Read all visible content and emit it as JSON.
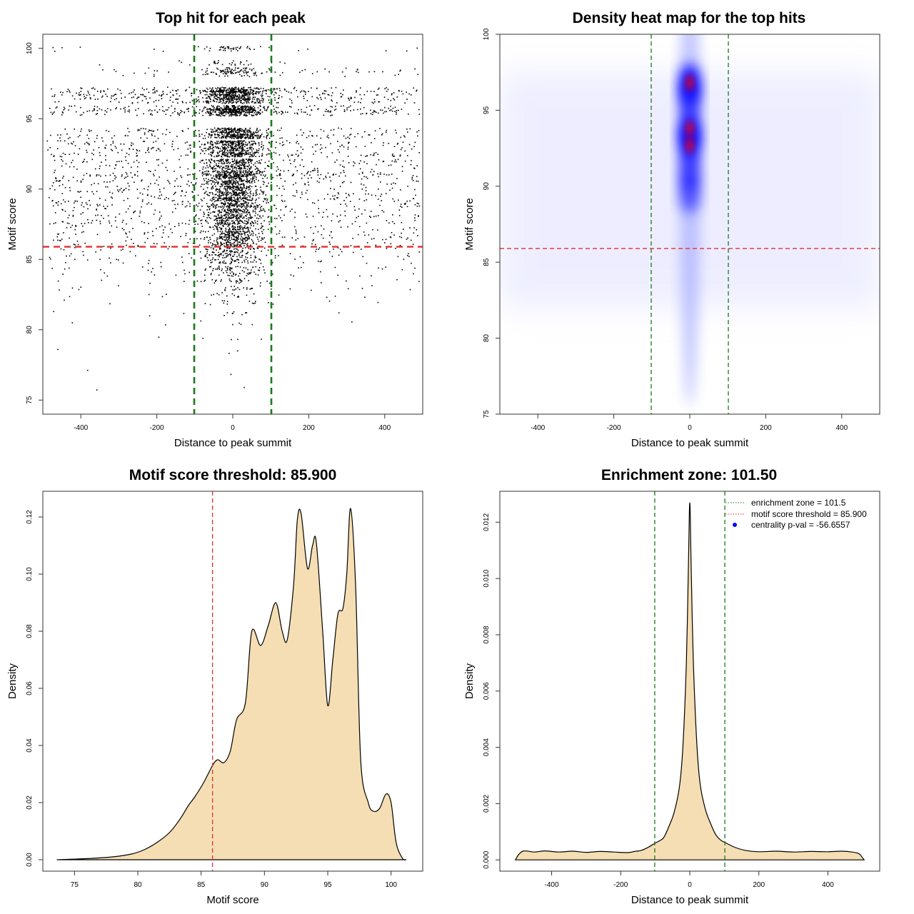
{
  "chart_data": [
    {
      "id": "scatter",
      "type": "scatter",
      "title": "Top hit for each peak",
      "xlabel": "Distance to peak summit",
      "ylabel": "Motif score",
      "xlim": [
        -500,
        500
      ],
      "ylim": [
        74,
        101
      ],
      "xticks": [
        -400,
        -200,
        0,
        200,
        400
      ],
      "yticks": [
        75,
        80,
        85,
        90,
        95,
        100
      ],
      "hlines": [
        {
          "y": 85.9,
          "color": "#e03030",
          "style": "dashed"
        }
      ],
      "vlines": [
        {
          "x": -101.5,
          "color": "#1a7a1a",
          "style": "dashed"
        },
        {
          "x": 101.5,
          "color": "#1a7a1a",
          "style": "dashed"
        }
      ],
      "score_levels": [
        {
          "score": 100.0,
          "weight": 0.35
        },
        {
          "score": 99.0,
          "weight": 0.2
        },
        {
          "score": 98.5,
          "weight": 0.5
        },
        {
          "score": 98.2,
          "weight": 0.4
        },
        {
          "score": 97.1,
          "weight": 1.3
        },
        {
          "score": 96.9,
          "weight": 1.6
        },
        {
          "score": 96.6,
          "weight": 1.5
        },
        {
          "score": 96.3,
          "weight": 1.3
        },
        {
          "score": 95.8,
          "weight": 1.4
        },
        {
          "score": 95.6,
          "weight": 1.6
        },
        {
          "score": 95.4,
          "weight": 1.2
        },
        {
          "score": 94.2,
          "weight": 1.4
        },
        {
          "score": 93.8,
          "weight": 1.7
        },
        {
          "score": 93.3,
          "weight": 1.5
        },
        {
          "score": 92.9,
          "weight": 1.3
        },
        {
          "score": 92.5,
          "weight": 1.4
        },
        {
          "score": 92.0,
          "weight": 1.2
        },
        {
          "score": 91.6,
          "weight": 1.0
        },
        {
          "score": 91.2,
          "weight": 1.3
        },
        {
          "score": 90.9,
          "weight": 1.4
        },
        {
          "score": 90.5,
          "weight": 1.2
        },
        {
          "score": 90.1,
          "weight": 1.1
        },
        {
          "score": 89.7,
          "weight": 1.2
        },
        {
          "score": 89.3,
          "weight": 1.3
        },
        {
          "score": 88.9,
          "weight": 1.2
        },
        {
          "score": 88.5,
          "weight": 1.0
        },
        {
          "score": 88.1,
          "weight": 1.1
        },
        {
          "score": 87.7,
          "weight": 1.0
        },
        {
          "score": 87.3,
          "weight": 0.8
        },
        {
          "score": 86.9,
          "weight": 0.9
        },
        {
          "score": 86.5,
          "weight": 0.9
        },
        {
          "score": 86.1,
          "weight": 0.8
        },
        {
          "score": 85.7,
          "weight": 0.6
        },
        {
          "score": 85.3,
          "weight": 0.5
        },
        {
          "score": 84.9,
          "weight": 0.45
        },
        {
          "score": 84.4,
          "weight": 0.4
        },
        {
          "score": 84.0,
          "weight": 0.3
        },
        {
          "score": 83.5,
          "weight": 0.25
        },
        {
          "score": 83.0,
          "weight": 0.2
        },
        {
          "score": 82.5,
          "weight": 0.15
        },
        {
          "score": 82.0,
          "weight": 0.12
        },
        {
          "score": 81.2,
          "weight": 0.08
        },
        {
          "score": 80.5,
          "weight": 0.05
        },
        {
          "score": 79.5,
          "weight": 0.03
        },
        {
          "score": 78.5,
          "weight": 0.02
        },
        {
          "score": 77.0,
          "weight": 0.01
        },
        {
          "score": 75.8,
          "weight": 0.01
        }
      ]
    },
    {
      "id": "heatmap",
      "type": "heatmap",
      "title": "Density heat map for the top hits",
      "xlabel": "Distance to peak summit",
      "ylabel": "Motif score",
      "xlim": [
        -500,
        500
      ],
      "ylim": [
        75,
        100
      ],
      "xticks": [
        -400,
        -200,
        0,
        200,
        400
      ],
      "yticks": [
        75,
        80,
        85,
        90,
        95,
        100
      ],
      "hlines": [
        {
          "y": 85.9,
          "color": "#e03030",
          "style": "dashed"
        }
      ],
      "vlines": [
        {
          "x": -101.5,
          "color": "#1a7a1a",
          "style": "dashed"
        },
        {
          "x": 101.5,
          "color": "#1a7a1a",
          "style": "dashed"
        }
      ],
      "hotspots": [
        {
          "x": 0,
          "y": 96.8,
          "intensity": 1.0
        },
        {
          "x": 0,
          "y": 95.7,
          "intensity": 0.75
        },
        {
          "x": 0,
          "y": 93.8,
          "intensity": 0.9
        },
        {
          "x": 0,
          "y": 92.8,
          "intensity": 0.95
        },
        {
          "x": 0,
          "y": 91.0,
          "intensity": 0.7
        },
        {
          "x": 0,
          "y": 89.5,
          "intensity": 0.6
        }
      ],
      "colors": [
        "#ffffff",
        "#0000ff",
        "#ff0000"
      ]
    },
    {
      "id": "score-density",
      "type": "area",
      "title": "Motif score threshold: 85.900",
      "xlabel": "Motif score",
      "ylabel": "Density",
      "xlim": [
        72.5,
        102.5
      ],
      "ylim": [
        -0.004,
        0.129
      ],
      "xticks": [
        75,
        80,
        85,
        90,
        95,
        100
      ],
      "yticks": [
        "0.00",
        "0.02",
        "0.04",
        "0.06",
        "0.08",
        "0.10",
        "0.12"
      ],
      "fill": "#f5deb3",
      "vlines": [
        {
          "x": 85.9,
          "color": "#e03030",
          "style": "dashed"
        }
      ],
      "x": [
        73.6,
        76,
        78,
        79.5,
        80.5,
        81.5,
        82.5,
        83.3,
        84,
        84.5,
        85.2,
        85.9,
        86.3,
        86.8,
        87.3,
        87.8,
        88.5,
        89.0,
        89.7,
        90.3,
        90.9,
        91.4,
        91.8,
        92.3,
        92.6,
        92.9,
        93.4,
        93.8,
        94.1,
        94.6,
        95.0,
        95.4,
        95.8,
        96.2,
        96.5,
        96.8,
        97.2,
        97.6,
        98.2,
        98.6,
        99.1,
        99.6,
        100.0,
        100.4,
        100.9,
        101.2
      ],
      "y": [
        0.0,
        0.0004,
        0.001,
        0.002,
        0.0035,
        0.006,
        0.0095,
        0.014,
        0.019,
        0.022,
        0.027,
        0.033,
        0.035,
        0.034,
        0.038,
        0.049,
        0.055,
        0.08,
        0.075,
        0.082,
        0.09,
        0.08,
        0.077,
        0.096,
        0.119,
        0.121,
        0.102,
        0.11,
        0.111,
        0.08,
        0.054,
        0.07,
        0.086,
        0.088,
        0.1,
        0.123,
        0.096,
        0.035,
        0.02,
        0.017,
        0.018,
        0.023,
        0.02,
        0.006,
        0.0005,
        0.0
      ]
    },
    {
      "id": "distance-density",
      "type": "area",
      "title": "Enrichment zone: 101.50",
      "xlabel": "Distance to peak summit",
      "ylabel": "Density",
      "xlim": [
        -550,
        550
      ],
      "ylim": [
        -0.0004,
        0.0131
      ],
      "xticks": [
        -400,
        -200,
        0,
        200,
        400
      ],
      "yticks": [
        "0.000",
        "0.002",
        "0.004",
        "0.006",
        "0.008",
        "0.010",
        "0.012"
      ],
      "fill": "#f5deb3",
      "vlines": [
        {
          "x": -101.5,
          "color": "#1a7a1a",
          "style": "dashed"
        },
        {
          "x": 101.5,
          "color": "#1a7a1a",
          "style": "dashed"
        }
      ],
      "x": [
        -505,
        -495,
        -480,
        -450,
        -420,
        -380,
        -340,
        -300,
        -260,
        -220,
        -180,
        -160,
        -140,
        -120,
        -100,
        -85,
        -75,
        -60,
        -45,
        -30,
        -20,
        -10,
        -4,
        0,
        4,
        10,
        20,
        30,
        45,
        60,
        75,
        90,
        105,
        130,
        160,
        200,
        250,
        300,
        350,
        400,
        440,
        470,
        490,
        500,
        505
      ],
      "y": [
        0.0,
        0.0002,
        0.00032,
        0.00028,
        0.00032,
        0.00028,
        0.00031,
        0.00027,
        0.0003,
        0.00028,
        0.00026,
        0.0003,
        0.00034,
        0.00045,
        0.0006,
        0.0007,
        0.0008,
        0.0012,
        0.0017,
        0.0026,
        0.004,
        0.007,
        0.0105,
        0.0127,
        0.0105,
        0.0072,
        0.0042,
        0.0027,
        0.0018,
        0.0013,
        0.0009,
        0.0007,
        0.0006,
        0.00045,
        0.00034,
        0.00029,
        0.00031,
        0.00028,
        0.0003,
        0.00029,
        0.00031,
        0.00028,
        0.00022,
        8e-05,
        0.0
      ]
    }
  ],
  "legend": {
    "items": [
      {
        "label": "enrichment zone = 101.5",
        "color": "#1a7a1a",
        "symbol": "dotted-line"
      },
      {
        "label": "motif score threshold = 85.900",
        "color": "#e03030",
        "symbol": "dotted-line"
      },
      {
        "label": "centrality p-val = -56.6557",
        "color": "#0000ff",
        "symbol": "dot"
      }
    ]
  }
}
